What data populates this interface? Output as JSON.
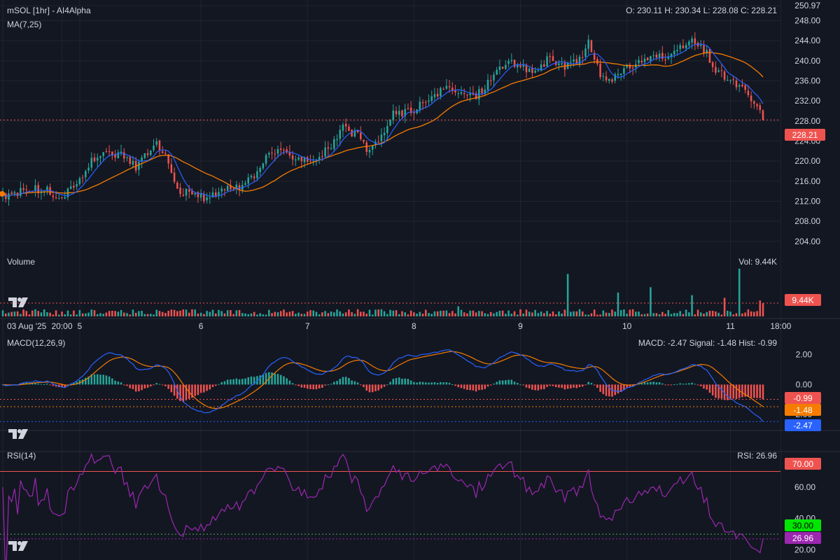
{
  "header": {
    "title": "mSOL [1hr] - AI4Alpha",
    "ma_label": "MA(7,25)",
    "ohlc": "O: 230.11 H: 230.34 L: 228.08 C: 228.21"
  },
  "colors": {
    "background": "#131722",
    "grid": "#1f2430",
    "up": "#26a69a",
    "down": "#ef5350",
    "ma7": "#2962ff",
    "ma25": "#f57c00",
    "macd": "#2962ff",
    "signal": "#f57c00",
    "rsi": "#9c27b0",
    "rsi_upper": "#ef5350",
    "rsi_lower": "#4caf50",
    "text": "#d1d4dc"
  },
  "chart_data": [
    {
      "type": "candlestick",
      "pane": "price",
      "title": "mSOL [1hr] - AI4Alpha",
      "indicator": "MA(7,25)",
      "ohlc_last": {
        "open": 230.11,
        "high": 230.34,
        "low": 228.08,
        "close": 228.21
      },
      "y_ticks": [
        "250.97",
        "248.00",
        "244.00",
        "240.00",
        "236.00",
        "232.00",
        "228.00",
        "224.00",
        "220.00",
        "216.00",
        "212.00",
        "208.00",
        "204.00"
      ],
      "ylim": [
        203,
        251
      ],
      "last_price_label": "228.21",
      "last_price": 228.21,
      "close_anchors": [
        [
          0,
          212.6
        ],
        [
          8,
          214.5
        ],
        [
          15,
          214.0
        ],
        [
          20,
          212.8
        ],
        [
          25,
          215.5
        ],
        [
          30,
          219.8
        ],
        [
          35,
          222.5
        ],
        [
          40,
          221.0
        ],
        [
          45,
          219.0
        ],
        [
          52,
          224.0
        ],
        [
          56,
          219.5
        ],
        [
          60,
          214.0
        ],
        [
          65,
          213.0
        ],
        [
          70,
          212.8
        ],
        [
          75,
          214.0
        ],
        [
          80,
          215.0
        ],
        [
          85,
          216.5
        ],
        [
          90,
          222.0
        ],
        [
          95,
          221.5
        ],
        [
          100,
          221.0
        ],
        [
          105,
          220.2
        ],
        [
          110,
          222.5
        ],
        [
          115,
          226.5
        ],
        [
          120,
          225.0
        ],
        [
          124,
          221.5
        ],
        [
          128,
          225.0
        ],
        [
          132,
          229.5
        ],
        [
          138,
          230.0
        ],
        [
          145,
          232.5
        ],
        [
          150,
          234.5
        ],
        [
          155,
          233.5
        ],
        [
          160,
          233.0
        ],
        [
          165,
          236.5
        ],
        [
          170,
          240.0
        ],
        [
          175,
          238.5
        ],
        [
          180,
          238.0
        ],
        [
          185,
          240.5
        ],
        [
          190,
          238.5
        ],
        [
          195,
          240.5
        ],
        [
          198,
          243.5
        ],
        [
          202,
          237.0
        ],
        [
          207,
          236.5
        ],
        [
          212,
          239.0
        ],
        [
          217,
          240.5
        ],
        [
          222,
          241.0
        ],
        [
          225,
          240.0
        ],
        [
          230,
          243.0
        ],
        [
          233,
          244.0
        ],
        [
          238,
          241.5
        ],
        [
          241,
          238.0
        ],
        [
          245,
          236.5
        ],
        [
          250,
          234.5
        ],
        [
          254,
          231.5
        ],
        [
          257,
          228.2
        ]
      ],
      "seed": 7,
      "candle_count": 258
    },
    {
      "type": "bar",
      "pane": "volume",
      "title": "Volume",
      "last_value_label": "Vol: 9.44K",
      "tag": "9.44K",
      "spikes": [
        [
          154,
          1.9
        ],
        [
          191,
          8.0
        ],
        [
          208,
          4.5
        ],
        [
          219,
          5.5
        ],
        [
          233,
          4.0
        ],
        [
          244,
          3.5
        ],
        [
          249,
          9.0
        ],
        [
          256,
          3.0
        ]
      ],
      "baseline": 0.8,
      "ymax": 9.5
    },
    {
      "type": "line",
      "pane": "macd",
      "title": "MACD(12,26,9)",
      "readout": "MACD: -2.47 Signal: -1.48 Hist: -0.99",
      "y_ticks": [
        "2.00",
        "0.00",
        "-2.00"
      ],
      "ylim": [
        -2.6,
        2.4
      ],
      "tags": {
        "hist": "-0.99",
        "signal": "-1.48",
        "macd": "-2.47"
      },
      "last": {
        "macd": -2.47,
        "signal": -1.48,
        "hist": -0.99
      }
    },
    {
      "type": "line",
      "pane": "rsi",
      "title": "RSI(14)",
      "readout": "RSI: 26.96",
      "y_ticks": [
        "60.00",
        "40.00",
        "20.00"
      ],
      "ylim": [
        18,
        76
      ],
      "upper": 70,
      "lower": 30,
      "tags": {
        "upper": "70.00",
        "lower": "30.00",
        "last": "26.96"
      },
      "last": 26.96
    }
  ],
  "x_axis": {
    "labels": [
      "03 Aug '25",
      "20:00",
      "5",
      "6",
      "7",
      "8",
      "9",
      "10",
      "11",
      "18:00"
    ],
    "label_positions": [
      0,
      20,
      26,
      67,
      103,
      139,
      175,
      211,
      246,
      263
    ]
  },
  "icons": [
    "tradingview-logo-icon"
  ]
}
